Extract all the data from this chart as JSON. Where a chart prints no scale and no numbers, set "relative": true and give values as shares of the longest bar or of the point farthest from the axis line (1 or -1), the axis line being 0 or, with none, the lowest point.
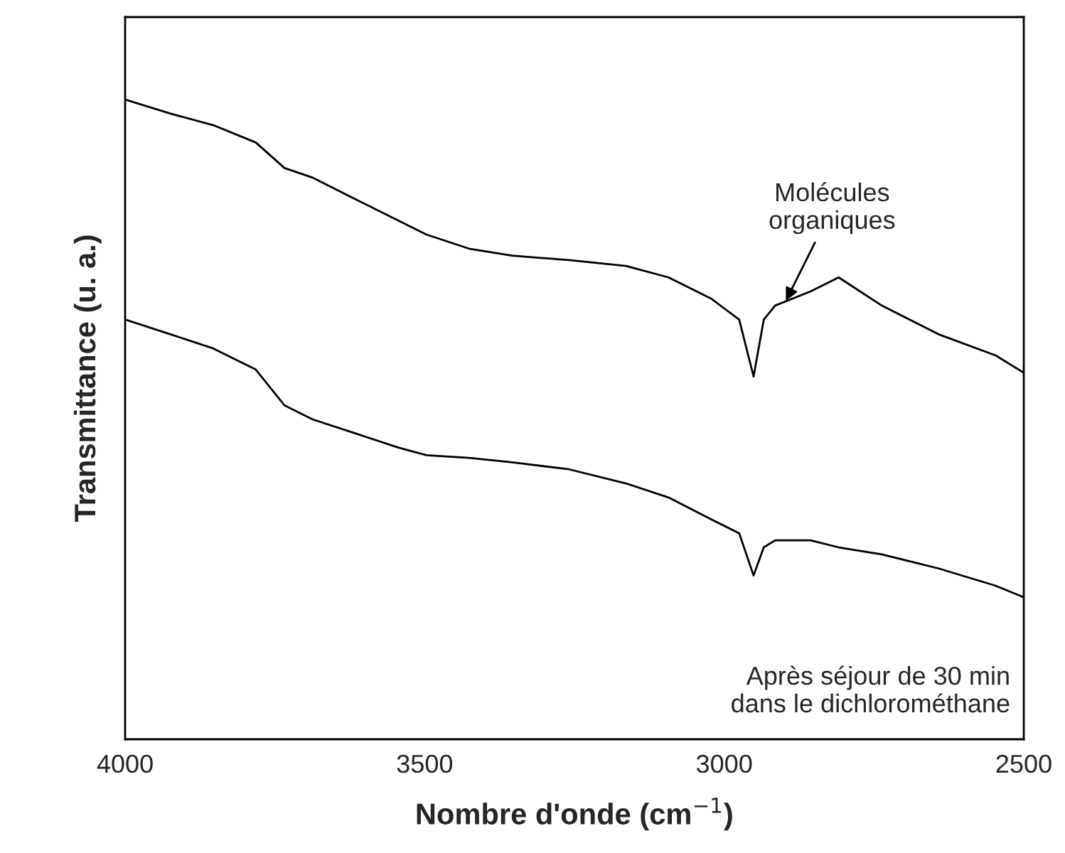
{
  "chart_data": {
    "type": "line",
    "relative": true,
    "xlabel": "Nombre d'onde (cm$^{−1}$)",
    "ylabel": "Transmittance (u. a.)",
    "xlim": [
      4000,
      2500
    ],
    "xticks": [
      4000,
      3500,
      3000,
      2500
    ],
    "grid": false,
    "legend": false,
    "x": [
      4000,
      3924,
      3853,
      3782,
      3734,
      3687,
      3615,
      3544,
      3497,
      3426,
      3354,
      3259,
      3164,
      3093,
      3022,
      2975,
      2951,
      2934,
      2915,
      2856,
      2809,
      2737,
      2642,
      2547,
      2500
    ],
    "series": [
      {
        "color": "#000000",
        "values": [
          1.0,
          0.978,
          0.96,
          0.933,
          0.893,
          0.878,
          0.844,
          0.811,
          0.789,
          0.767,
          0.756,
          0.749,
          0.74,
          0.722,
          0.689,
          0.656,
          0.567,
          0.656,
          0.678,
          0.7,
          0.722,
          0.678,
          0.633,
          0.6,
          0.573
        ]
      },
      {
        "color": "#000000",
        "values": [
          0.656,
          0.633,
          0.611,
          0.578,
          0.522,
          0.5,
          0.478,
          0.456,
          0.444,
          0.44,
          0.433,
          0.422,
          0.4,
          0.378,
          0.344,
          0.322,
          0.256,
          0.3,
          0.311,
          0.311,
          0.3,
          0.289,
          0.267,
          0.24,
          0.222
        ]
      }
    ],
    "annotations": [
      {
        "text": "Molécules\norganiques",
        "x": 2900,
        "y": 0.68
      },
      "Après séjour de 30 min\ndans le dichlorométhane"
    ]
  }
}
